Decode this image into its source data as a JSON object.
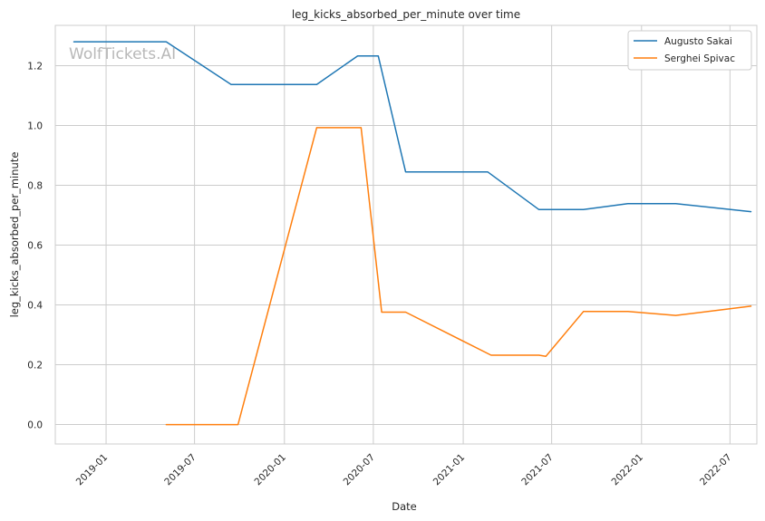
{
  "chart_data": {
    "type": "line",
    "title": "leg_kicks_absorbed_per_minute over time",
    "xlabel": "Date",
    "ylabel": "leg_kicks_absorbed_per_minute",
    "watermark": "WolfTickets.AI",
    "grid": true,
    "legend_position": "top-right",
    "xlim": [
      "2018-09-19",
      "2022-08-25"
    ],
    "ylim": [
      -0.065,
      1.335
    ],
    "x_ticks": [
      "2019-01",
      "2019-07",
      "2020-01",
      "2020-07",
      "2021-01",
      "2021-07",
      "2022-01",
      "2022-07"
    ],
    "y_ticks": [
      "0.0",
      "0.2",
      "0.4",
      "0.6",
      "0.8",
      "1.0",
      "1.2"
    ],
    "series": [
      {
        "name": "Augusto Sakai",
        "color": "#1f77b4",
        "points": [
          {
            "x": "2018-10-27",
            "y": 1.28
          },
          {
            "x": "2019-05-04",
            "y": 1.28
          },
          {
            "x": "2019-09-14",
            "y": 1.137
          },
          {
            "x": "2020-03-07",
            "y": 1.137
          },
          {
            "x": "2020-05-30",
            "y": 1.233
          },
          {
            "x": "2020-07-11",
            "y": 1.233
          },
          {
            "x": "2020-09-05",
            "y": 0.845
          },
          {
            "x": "2021-02-20",
            "y": 0.845
          },
          {
            "x": "2021-06-05",
            "y": 0.719
          },
          {
            "x": "2021-09-04",
            "y": 0.719
          },
          {
            "x": "2021-12-04",
            "y": 0.739
          },
          {
            "x": "2022-03-12",
            "y": 0.739
          },
          {
            "x": "2022-08-13",
            "y": 0.712
          }
        ]
      },
      {
        "name": "Serghei Spivac",
        "color": "#ff7f0e",
        "points": [
          {
            "x": "2019-05-04",
            "y": 0.0
          },
          {
            "x": "2019-09-28",
            "y": 0.0
          },
          {
            "x": "2020-03-07",
            "y": 0.993
          },
          {
            "x": "2020-06-06",
            "y": 0.993
          },
          {
            "x": "2020-07-18",
            "y": 0.376
          },
          {
            "x": "2020-09-05",
            "y": 0.376
          },
          {
            "x": "2021-02-27",
            "y": 0.232
          },
          {
            "x": "2021-06-05",
            "y": 0.232
          },
          {
            "x": "2021-06-19",
            "y": 0.228
          },
          {
            "x": "2021-09-04",
            "y": 0.378
          },
          {
            "x": "2021-12-04",
            "y": 0.378
          },
          {
            "x": "2022-03-12",
            "y": 0.365
          },
          {
            "x": "2022-08-13",
            "y": 0.396
          }
        ]
      }
    ]
  }
}
